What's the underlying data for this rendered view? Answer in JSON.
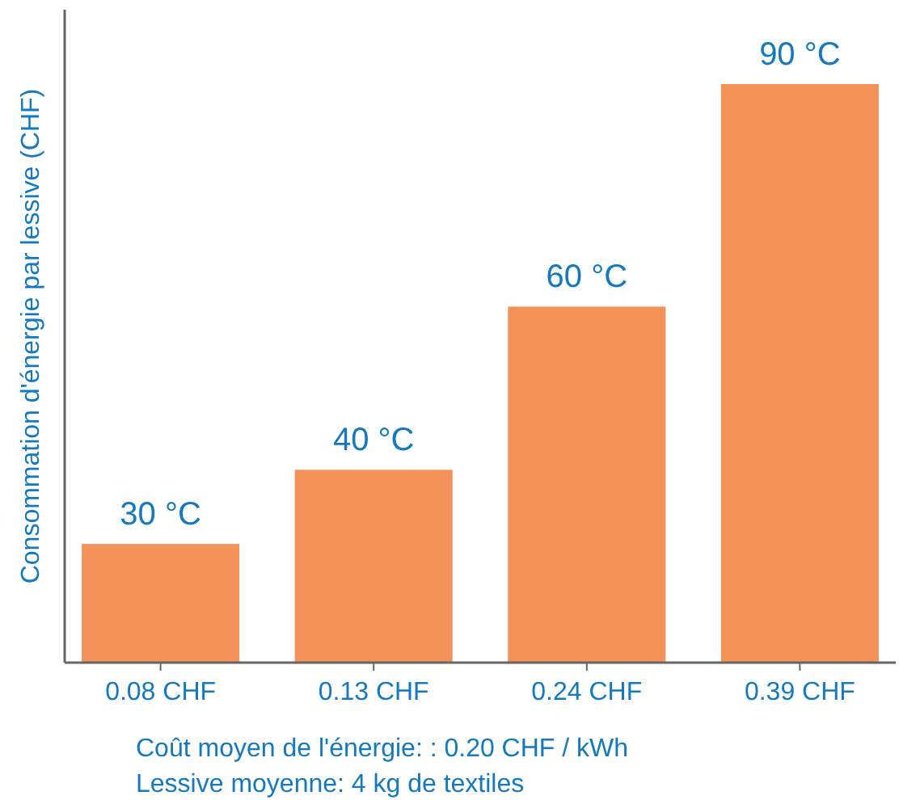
{
  "chart_data": {
    "type": "bar",
    "ylabel": "Consommation d'énergie par lessive (CHF)",
    "categories": [
      "30 °C",
      "40 °C",
      "60 °C",
      "90 °C"
    ],
    "values": [
      0.08,
      0.13,
      0.24,
      0.39
    ],
    "value_labels": [
      "0.08 CHF",
      "0.13 CHF",
      "0.24 CHF",
      "0.39 CHF"
    ],
    "color": "#f5925a",
    "annotations": [
      "Coût moyen de l'énergie: : 0.20 CHF / kWh",
      "Lessive moyenne: 4 kg de textiles"
    ]
  }
}
